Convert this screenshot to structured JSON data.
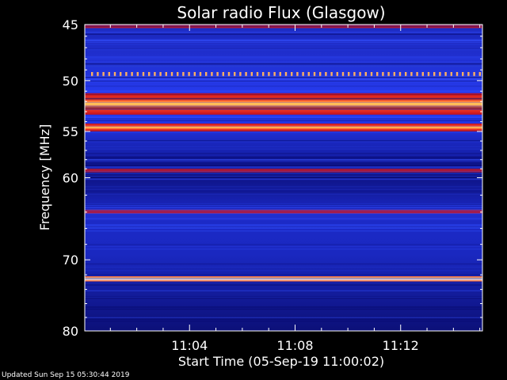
{
  "chart_data": {
    "type": "heatmap",
    "title": "Solar radio Flux (Glasgow)",
    "ylabel": "Frequency [MHz]",
    "xlabel": "Start Time (05-Sep-19 11:00:02)",
    "y_ticks": [
      45,
      50,
      55,
      60,
      70,
      80
    ],
    "x_ticks": [
      "11:04",
      "11:08",
      "11:12"
    ],
    "x_tick_minutes": [
      4,
      8,
      12
    ],
    "xlim_minutes": [
      0.03,
      15.1
    ],
    "ylim_mhz": [
      45,
      80
    ],
    "y_scale": "log",
    "emission_bands": [
      {
        "freq_start": 51.2,
        "freq_end": 53.3,
        "intensity": "strong"
      },
      {
        "freq_start": 54.2,
        "freq_end": 55.0,
        "intensity": "strong"
      },
      {
        "freq_start": 49.2,
        "freq_end": 49.6,
        "intensity": "dotted"
      },
      {
        "freq_start": 59.0,
        "freq_end": 59.4,
        "intensity": "moderate"
      },
      {
        "freq_start": 63.7,
        "freq_end": 64.2,
        "intensity": "moderate"
      },
      {
        "freq_start": 72.2,
        "freq_end": 72.9,
        "intensity": "very-strong"
      },
      {
        "freq_start": 45.0,
        "freq_end": 45.3,
        "intensity": "moderate"
      }
    ],
    "colors": {
      "background": "#000000",
      "low": "#0a0a70",
      "mid": "#2a3cf0",
      "high": "#ff2a10",
      "max": "#fff8c0"
    }
  },
  "footer": {
    "updated": "Updated Sun Sep 15 05:30:44 2019"
  }
}
